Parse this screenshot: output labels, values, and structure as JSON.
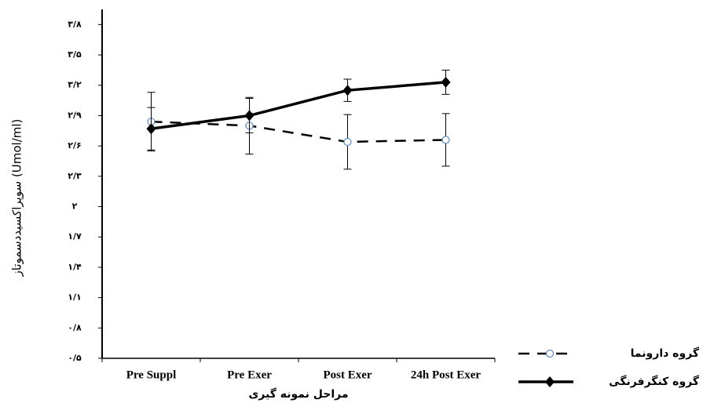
{
  "chart_data": {
    "type": "line",
    "y_label": "سوپراکسیددسموتاز (Umol/ml)",
    "x_label": "مراحل نمونه گیری",
    "categories": [
      "Pre Suppl",
      "Pre Exer",
      "Post Exer",
      "24h Post Exer"
    ],
    "ylim": [
      0.5,
      3.95
    ],
    "yticks": [
      {
        "value": 0.5,
        "label": "۰/۵"
      },
      {
        "value": 0.8,
        "label": "۰/۸"
      },
      {
        "value": 1.1,
        "label": "۱/۱"
      },
      {
        "value": 1.4,
        "label": "۱/۴"
      },
      {
        "value": 1.7,
        "label": "۱/۷"
      },
      {
        "value": 2,
        "label": "۲"
      },
      {
        "value": 2.3,
        "label": "۲/۳"
      },
      {
        "value": 2.6,
        "label": "۲/۶"
      },
      {
        "value": 2.9,
        "label": "۲/۹"
      },
      {
        "value": 3.2,
        "label": "۳/۲"
      },
      {
        "value": 3.5,
        "label": "۳/۵"
      },
      {
        "value": 3.8,
        "label": "۳/۸"
      }
    ],
    "grid": false,
    "series": [
      {
        "name": "گروه دارونما",
        "color": "#000000",
        "dashed": true,
        "marker": "circle",
        "values": [
          2.84,
          2.8,
          2.64,
          2.66
        ],
        "errors": [
          0.29,
          0.28,
          0.27,
          0.26
        ]
      },
      {
        "name": "گروه کنگرفرنگی",
        "color": "#000000",
        "dashed": false,
        "marker": "diamond",
        "values": [
          2.77,
          2.9,
          3.15,
          3.23
        ],
        "errors": [
          0.21,
          0.17,
          0.11,
          0.12
        ]
      }
    ]
  }
}
